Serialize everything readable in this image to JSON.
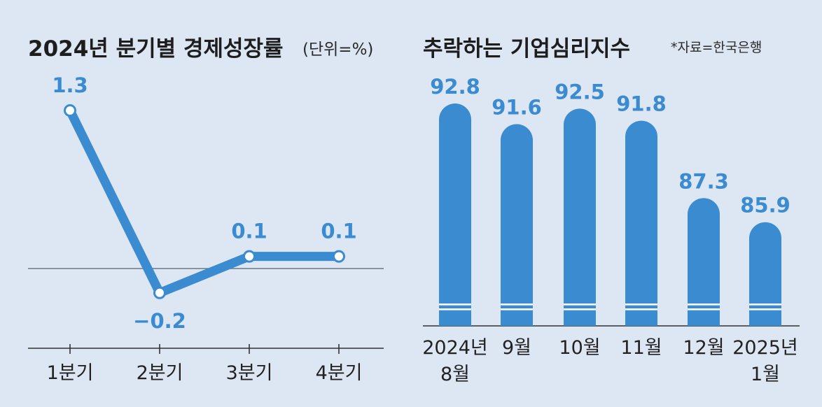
{
  "chart_data": [
    {
      "type": "line",
      "title": "2024년 분기별 경제성장률",
      "unit_label": "(단위=%)",
      "categories": [
        "1분기",
        "2분기",
        "3분기",
        "4분기"
      ],
      "values": [
        1.3,
        -0.2,
        0.1,
        0.1
      ],
      "value_labels": [
        "1.3",
        "−0.2",
        "0.1",
        "0.1"
      ],
      "ylim": [
        -0.8,
        1.4
      ],
      "zero_line": true,
      "color": "#3a8bd0"
    },
    {
      "type": "bar",
      "title": "추락하는 기업심리지수",
      "source": "*자료=한국은행",
      "categories": [
        [
          "2024년",
          "8월"
        ],
        [
          "9월"
        ],
        [
          "10월"
        ],
        [
          "11월"
        ],
        [
          "12월"
        ],
        [
          "2025년",
          "1월"
        ]
      ],
      "values": [
        92.8,
        91.6,
        92.5,
        91.8,
        87.3,
        85.9
      ],
      "value_labels": [
        "92.8",
        "91.6",
        "92.5",
        "91.8",
        "87.3",
        "85.9"
      ],
      "axis_break": true,
      "color": "#3a8bd0"
    }
  ]
}
